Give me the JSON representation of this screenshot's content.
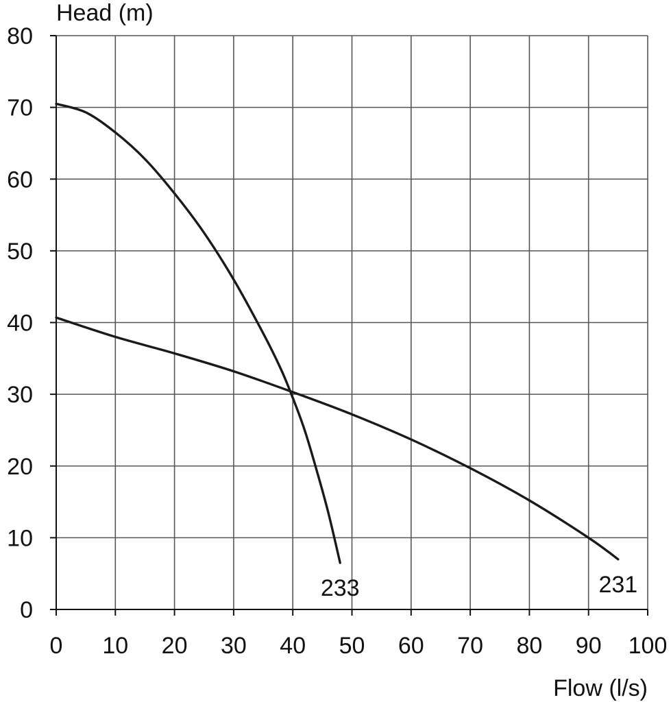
{
  "chart_data": {
    "type": "line",
    "xlabel": "Flow (l/s)",
    "ylabel": "Head (m)",
    "xlim": [
      0,
      100
    ],
    "ylim": [
      0,
      80
    ],
    "x_ticks": [
      0,
      10,
      20,
      30,
      40,
      50,
      60,
      70,
      80,
      90,
      100
    ],
    "y_ticks": [
      0,
      10,
      20,
      30,
      40,
      50,
      60,
      70,
      80
    ],
    "grid": true,
    "series": [
      {
        "name": "233",
        "color": "#1a1a1a",
        "points": [
          {
            "x": 0,
            "y": 70.5
          },
          {
            "x": 5,
            "y": 69.3
          },
          {
            "x": 10,
            "y": 66.5
          },
          {
            "x": 15,
            "y": 62.8
          },
          {
            "x": 20,
            "y": 58.0
          },
          {
            "x": 25,
            "y": 52.5
          },
          {
            "x": 30,
            "y": 46.0
          },
          {
            "x": 35,
            "y": 38.5
          },
          {
            "x": 38,
            "y": 33.5
          },
          {
            "x": 40,
            "y": 29.5
          },
          {
            "x": 42,
            "y": 25.0
          },
          {
            "x": 44,
            "y": 19.5
          },
          {
            "x": 46,
            "y": 13.5
          },
          {
            "x": 48,
            "y": 6.5
          }
        ]
      },
      {
        "name": "231",
        "color": "#1a1a1a",
        "points": [
          {
            "x": 0,
            "y": 40.7
          },
          {
            "x": 10,
            "y": 38.0
          },
          {
            "x": 20,
            "y": 35.7
          },
          {
            "x": 30,
            "y": 33.2
          },
          {
            "x": 40,
            "y": 30.3
          },
          {
            "x": 50,
            "y": 27.2
          },
          {
            "x": 60,
            "y": 23.7
          },
          {
            "x": 70,
            "y": 19.7
          },
          {
            "x": 80,
            "y": 15.2
          },
          {
            "x": 90,
            "y": 10.0
          },
          {
            "x": 95,
            "y": 7.0
          }
        ]
      }
    ]
  }
}
